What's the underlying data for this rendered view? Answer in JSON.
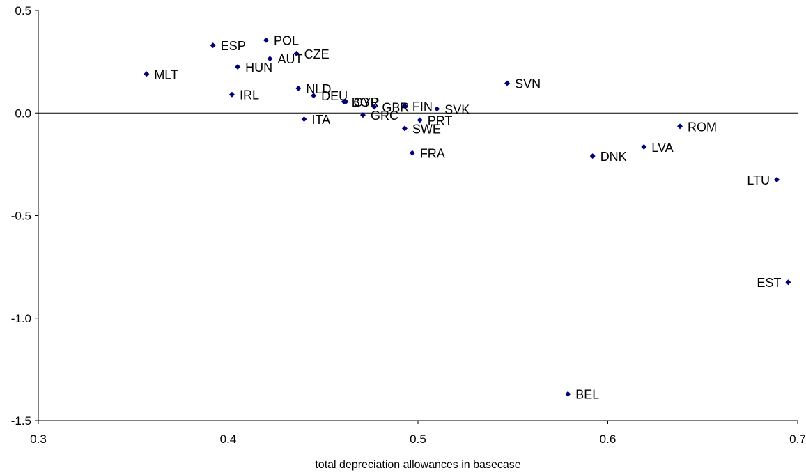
{
  "chart_data": {
    "type": "scatter",
    "title": "",
    "xlabel": "total depreciation allowances in basecase",
    "ylabel": "",
    "xlim": [
      0.3,
      0.7
    ],
    "ylim": [
      -1.5,
      0.5
    ],
    "xticks": [
      "0.3",
      "0.4",
      "0.5",
      "0.6",
      "0.7"
    ],
    "yticks": [
      "0.5",
      "0.0",
      "-0.5",
      "-1.0",
      "-1.5"
    ],
    "marker_color": "#00007F",
    "grid": false,
    "points": [
      {
        "label": "MLT",
        "x": 0.357,
        "y": 0.19
      },
      {
        "label": "ESP",
        "x": 0.392,
        "y": 0.33
      },
      {
        "label": "IRL",
        "x": 0.402,
        "y": 0.09
      },
      {
        "label": "HUN",
        "x": 0.405,
        "y": 0.225
      },
      {
        "label": "POL",
        "x": 0.42,
        "y": 0.355
      },
      {
        "label": "AUT",
        "x": 0.422,
        "y": 0.265
      },
      {
        "label": "CZE",
        "x": 0.436,
        "y": 0.29
      },
      {
        "label": "NLD",
        "x": 0.437,
        "y": 0.12
      },
      {
        "label": "ITA",
        "x": 0.44,
        "y": -0.03
      },
      {
        "label": "DEU",
        "x": 0.445,
        "y": 0.085
      },
      {
        "label": "BGR",
        "x": 0.461,
        "y": 0.055
      },
      {
        "label": "CYP",
        "x": 0.462,
        "y": 0.055
      },
      {
        "label": "GRC",
        "x": 0.471,
        "y": -0.01
      },
      {
        "label": "GBR",
        "x": 0.477,
        "y": 0.03
      },
      {
        "label": "FIN",
        "x": 0.493,
        "y": 0.035
      },
      {
        "label": "SWE",
        "x": 0.493,
        "y": -0.075
      },
      {
        "label": "FRA",
        "x": 0.497,
        "y": -0.195
      },
      {
        "label": "PRT",
        "x": 0.501,
        "y": -0.035
      },
      {
        "label": "SVK",
        "x": 0.51,
        "y": 0.02
      },
      {
        "label": "SVN",
        "x": 0.547,
        "y": 0.145
      },
      {
        "label": "BEL",
        "x": 0.579,
        "y": -1.37
      },
      {
        "label": "DNK",
        "x": 0.592,
        "y": -0.21
      },
      {
        "label": "LVA",
        "x": 0.619,
        "y": -0.165
      },
      {
        "label": "ROM",
        "x": 0.638,
        "y": -0.065
      },
      {
        "label": "LTU",
        "x": 0.689,
        "y": -0.325
      },
      {
        "label": "EST",
        "x": 0.695,
        "y": -0.825
      }
    ]
  }
}
